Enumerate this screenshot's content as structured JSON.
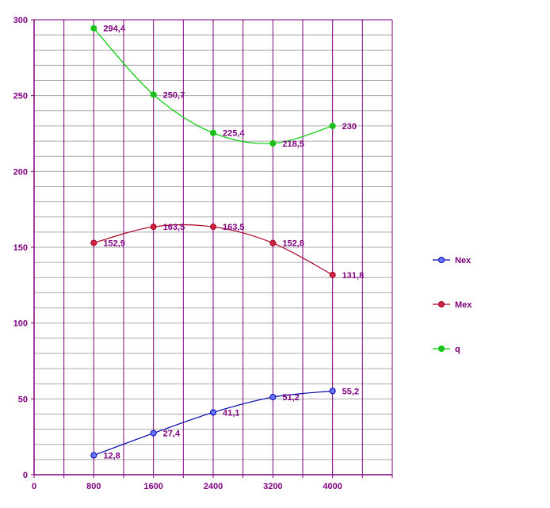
{
  "chart_data": {
    "type": "line",
    "x": [
      800,
      1600,
      2400,
      3200,
      4000
    ],
    "xlim": [
      0,
      4800
    ],
    "ylim": [
      0,
      300
    ],
    "x_ticks": [
      "0",
      "800",
      "1600",
      "2400",
      "3200",
      "4000"
    ],
    "x_tick_values": [
      0,
      800,
      1600,
      2400,
      3200,
      4000
    ],
    "y_ticks": [
      "0",
      "50",
      "100",
      "150",
      "200",
      "250",
      "300"
    ],
    "y_tick_values": [
      0,
      50,
      100,
      150,
      200,
      250,
      300
    ],
    "grid": true,
    "legend_position": "right",
    "series": [
      {
        "name": "Nex",
        "color": "#0000aa",
        "marker_color": "#6677ff",
        "values": [
          12.8,
          27.4,
          41.1,
          51.2,
          55.2
        ],
        "labels": [
          "12,8",
          "27,4",
          "41,1",
          "51,2",
          "55,2"
        ]
      },
      {
        "name": "Mex",
        "color": "#aa0022",
        "marker_color": "#cc2244",
        "values": [
          152.9,
          163.5,
          163.5,
          152.8,
          131.8
        ],
        "labels": [
          "152,9",
          "163,5",
          "163,5",
          "152,8",
          "131,8"
        ]
      },
      {
        "name": "q",
        "color": "#00cc00",
        "marker_color": "#22bb22",
        "values": [
          294.4,
          250.7,
          225.4,
          218.5,
          230
        ],
        "labels": [
          "294,4",
          "250,7",
          "225,4",
          "218,5",
          "230"
        ]
      }
    ]
  },
  "colors": {
    "axis": "#800080",
    "major_gridline": "#800080",
    "minor_gridline": "#aaaaaa"
  }
}
